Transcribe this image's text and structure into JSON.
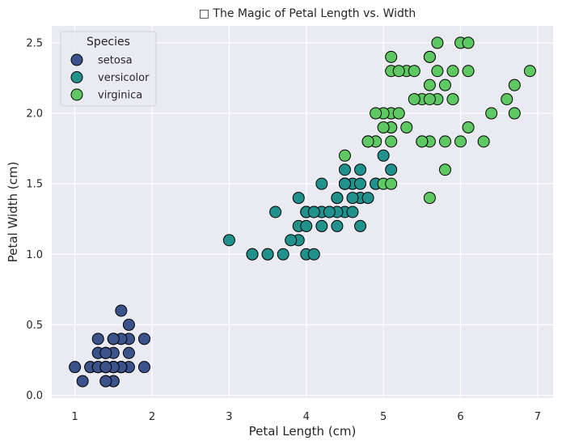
{
  "chart_data": {
    "type": "scatter",
    "title": "□ The Magic of Petal Length vs. Width",
    "xlabel": "Petal Length (cm)",
    "ylabel": "Petal Width (cm)",
    "xlim": [
      0.7,
      7.2
    ],
    "ylim": [
      -0.02,
      2.62
    ],
    "xticks": [
      1,
      2,
      3,
      4,
      5,
      6,
      7
    ],
    "xtick_labels": [
      "1",
      "2",
      "3",
      "4",
      "5",
      "6",
      "7"
    ],
    "yticks": [
      0.0,
      0.5,
      1.0,
      1.5,
      2.0,
      2.5
    ],
    "ytick_labels": [
      "0.0",
      "0.5",
      "1.0",
      "1.5",
      "2.0",
      "2.5"
    ],
    "grid": true,
    "background": "#eaeaf2",
    "grid_color": "#ffffff",
    "marker_edge_color": "#000000",
    "legend": {
      "title": "Species",
      "position": "top-left"
    },
    "series": [
      {
        "name": "setosa",
        "color": "#3b528b",
        "points": [
          [
            1.4,
            0.2
          ],
          [
            1.4,
            0.2
          ],
          [
            1.3,
            0.2
          ],
          [
            1.5,
            0.2
          ],
          [
            1.4,
            0.2
          ],
          [
            1.7,
            0.4
          ],
          [
            1.4,
            0.3
          ],
          [
            1.5,
            0.2
          ],
          [
            1.4,
            0.2
          ],
          [
            1.5,
            0.1
          ],
          [
            1.5,
            0.2
          ],
          [
            1.6,
            0.2
          ],
          [
            1.4,
            0.1
          ],
          [
            1.1,
            0.1
          ],
          [
            1.2,
            0.2
          ],
          [
            1.5,
            0.4
          ],
          [
            1.3,
            0.4
          ],
          [
            1.4,
            0.3
          ],
          [
            1.7,
            0.3
          ],
          [
            1.5,
            0.3
          ],
          [
            1.7,
            0.2
          ],
          [
            1.5,
            0.4
          ],
          [
            1.0,
            0.2
          ],
          [
            1.7,
            0.5
          ],
          [
            1.9,
            0.2
          ],
          [
            1.6,
            0.2
          ],
          [
            1.6,
            0.4
          ],
          [
            1.5,
            0.2
          ],
          [
            1.4,
            0.2
          ],
          [
            1.6,
            0.2
          ],
          [
            1.6,
            0.2
          ],
          [
            1.5,
            0.4
          ],
          [
            1.5,
            0.1
          ],
          [
            1.4,
            0.2
          ],
          [
            1.5,
            0.2
          ],
          [
            1.2,
            0.2
          ],
          [
            1.3,
            0.2
          ],
          [
            1.4,
            0.1
          ],
          [
            1.3,
            0.2
          ],
          [
            1.5,
            0.2
          ],
          [
            1.3,
            0.3
          ],
          [
            1.3,
            0.3
          ],
          [
            1.3,
            0.2
          ],
          [
            1.6,
            0.6
          ],
          [
            1.9,
            0.4
          ],
          [
            1.4,
            0.3
          ],
          [
            1.6,
            0.2
          ],
          [
            1.4,
            0.2
          ],
          [
            1.5,
            0.2
          ],
          [
            1.4,
            0.2
          ]
        ]
      },
      {
        "name": "versicolor",
        "color": "#21918c",
        "points": [
          [
            4.7,
            1.4
          ],
          [
            4.5,
            1.5
          ],
          [
            4.9,
            1.5
          ],
          [
            4.0,
            1.3
          ],
          [
            4.6,
            1.5
          ],
          [
            4.5,
            1.3
          ],
          [
            4.7,
            1.6
          ],
          [
            3.3,
            1.0
          ],
          [
            4.6,
            1.3
          ],
          [
            3.9,
            1.4
          ],
          [
            3.5,
            1.0
          ],
          [
            4.2,
            1.5
          ],
          [
            4.0,
            1.0
          ],
          [
            4.7,
            1.4
          ],
          [
            3.6,
            1.3
          ],
          [
            4.4,
            1.4
          ],
          [
            4.5,
            1.5
          ],
          [
            4.1,
            1.0
          ],
          [
            4.5,
            1.5
          ],
          [
            3.9,
            1.1
          ],
          [
            4.8,
            1.8
          ],
          [
            4.0,
            1.3
          ],
          [
            4.9,
            1.5
          ],
          [
            4.7,
            1.2
          ],
          [
            4.3,
            1.3
          ],
          [
            4.4,
            1.4
          ],
          [
            4.8,
            1.4
          ],
          [
            5.0,
            1.7
          ],
          [
            4.5,
            1.5
          ],
          [
            3.5,
            1.0
          ],
          [
            3.8,
            1.1
          ],
          [
            3.7,
            1.0
          ],
          [
            3.9,
            1.2
          ],
          [
            5.1,
            1.6
          ],
          [
            4.5,
            1.5
          ],
          [
            4.5,
            1.6
          ],
          [
            4.7,
            1.5
          ],
          [
            4.4,
            1.3
          ],
          [
            4.1,
            1.3
          ],
          [
            4.0,
            1.3
          ],
          [
            4.4,
            1.2
          ],
          [
            4.6,
            1.4
          ],
          [
            4.0,
            1.2
          ],
          [
            3.3,
            1.0
          ],
          [
            4.2,
            1.3
          ],
          [
            4.2,
            1.2
          ],
          [
            4.2,
            1.3
          ],
          [
            4.3,
            1.3
          ],
          [
            3.0,
            1.1
          ],
          [
            4.1,
            1.3
          ]
        ]
      },
      {
        "name": "virginica",
        "color": "#5ec962",
        "points": [
          [
            6.0,
            2.5
          ],
          [
            5.1,
            1.9
          ],
          [
            5.9,
            2.1
          ],
          [
            5.6,
            1.8
          ],
          [
            5.8,
            2.2
          ],
          [
            6.6,
            2.1
          ],
          [
            4.5,
            1.7
          ],
          [
            6.3,
            1.8
          ],
          [
            5.8,
            1.8
          ],
          [
            6.1,
            2.5
          ],
          [
            5.1,
            2.0
          ],
          [
            5.3,
            1.9
          ],
          [
            5.5,
            2.1
          ],
          [
            5.0,
            2.0
          ],
          [
            5.1,
            2.4
          ],
          [
            5.3,
            2.3
          ],
          [
            5.5,
            1.8
          ],
          [
            6.7,
            2.2
          ],
          [
            6.9,
            2.3
          ],
          [
            5.0,
            1.5
          ],
          [
            5.7,
            2.3
          ],
          [
            4.9,
            2.0
          ],
          [
            6.7,
            2.0
          ],
          [
            4.9,
            1.8
          ],
          [
            5.7,
            2.1
          ],
          [
            6.0,
            1.8
          ],
          [
            4.8,
            1.8
          ],
          [
            4.9,
            1.8
          ],
          [
            5.6,
            2.1
          ],
          [
            5.8,
            1.6
          ],
          [
            6.1,
            1.9
          ],
          [
            6.4,
            2.0
          ],
          [
            5.6,
            2.2
          ],
          [
            5.1,
            1.5
          ],
          [
            5.6,
            1.4
          ],
          [
            6.1,
            2.3
          ],
          [
            5.6,
            2.4
          ],
          [
            5.5,
            1.8
          ],
          [
            4.8,
            1.8
          ],
          [
            5.4,
            2.1
          ],
          [
            5.6,
            2.4
          ],
          [
            5.1,
            2.3
          ],
          [
            5.1,
            1.9
          ],
          [
            5.9,
            2.3
          ],
          [
            5.7,
            2.5
          ],
          [
            5.2,
            2.3
          ],
          [
            5.0,
            1.9
          ],
          [
            5.2,
            2.0
          ],
          [
            5.4,
            2.3
          ],
          [
            5.1,
            1.8
          ]
        ]
      }
    ]
  }
}
